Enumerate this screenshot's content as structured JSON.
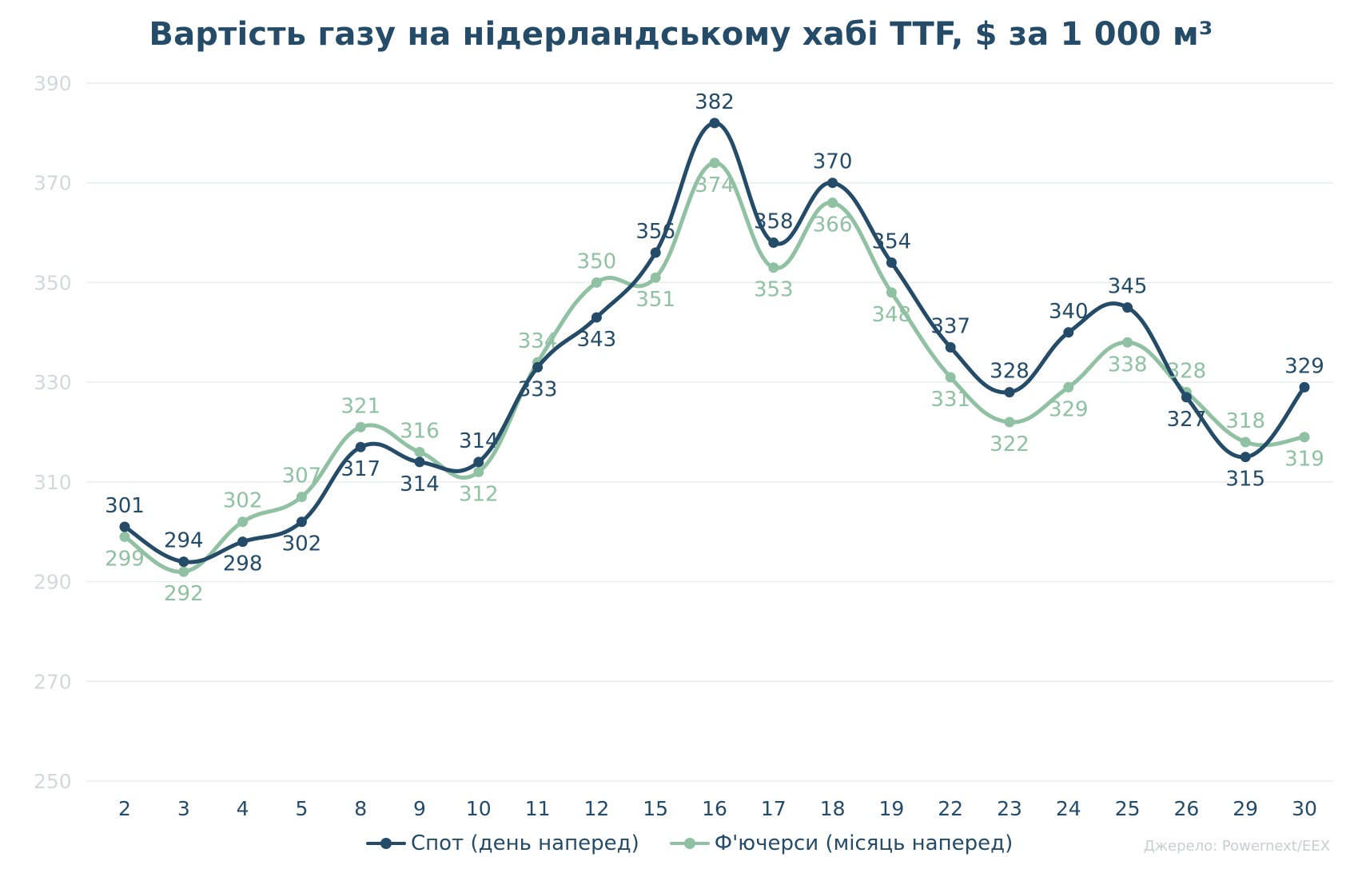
{
  "chart_data": {
    "type": "line",
    "title": "Вартість газу на нідерландському хабі TTF, $ за 1 000 м³",
    "categories": [
      "2",
      "3",
      "4",
      "5",
      "8",
      "9",
      "10",
      "11",
      "12",
      "15",
      "16",
      "17",
      "18",
      "19",
      "22",
      "23",
      "24",
      "25",
      "26",
      "29",
      "30"
    ],
    "series": [
      {
        "name": "Спот (день наперед)",
        "color": "#244b68",
        "values": [
          301,
          294,
          298,
          302,
          317,
          314,
          314,
          333,
          343,
          356,
          382,
          358,
          370,
          354,
          337,
          328,
          340,
          345,
          327,
          315,
          329
        ]
      },
      {
        "name": "Ф'ючерси (місяць наперед)",
        "color": "#8fc1a2",
        "values": [
          299,
          292,
          302,
          307,
          321,
          316,
          312,
          334,
          350,
          351,
          374,
          353,
          366,
          348,
          331,
          322,
          329,
          338,
          328,
          318,
          319
        ]
      }
    ],
    "y_ticks": [
      250,
      270,
      290,
      310,
      330,
      350,
      370,
      390
    ],
    "ylim": [
      250,
      390
    ],
    "grid": true,
    "legend": "bottom",
    "source": "Джерело: Powernext/EEX"
  }
}
